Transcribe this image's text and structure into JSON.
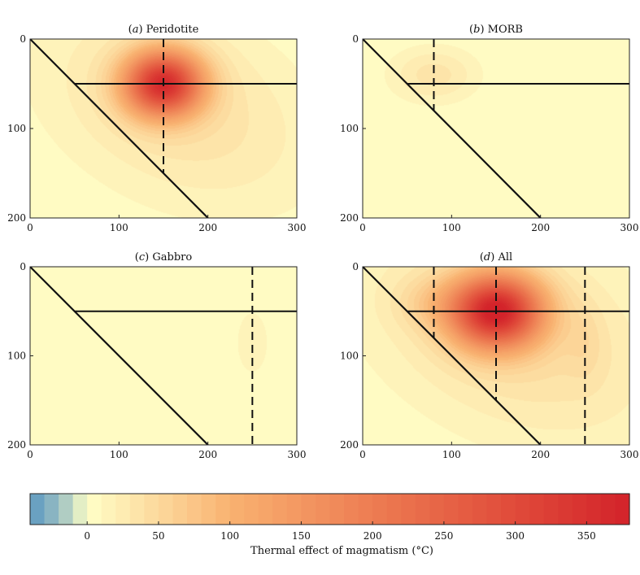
{
  "chart_data": {
    "type": "heatmap",
    "panels": [
      {
        "label": "(a)",
        "title": "Peridotite",
        "xlim": [
          0,
          300
        ],
        "ylim": [
          0,
          200
        ],
        "xticks": [
          "0",
          "100",
          "200",
          "300"
        ],
        "yticks": [
          "0",
          "100",
          "200"
        ],
        "slab": [
          [
            0,
            0
          ],
          [
            200,
            200
          ]
        ],
        "horizontal": {
          "y": 50,
          "x_from": 50,
          "x_to": 300
        },
        "dashed_x": [
          150
        ],
        "blobs": [
          {
            "cx": 150,
            "cy": 50,
            "sx": 30,
            "sy": 25,
            "amp": 330,
            "rot": 0
          },
          {
            "cx": 165,
            "cy": 75,
            "sx": 110,
            "sy": 70,
            "amp": 40,
            "rot": 25
          }
        ],
        "neg": {
          "cx": 190,
          "cy": 160,
          "len": 90,
          "wid": 11,
          "rot": 47,
          "amp": -20
        }
      },
      {
        "label": "(b)",
        "title": "MORB",
        "xlim": [
          0,
          300
        ],
        "ylim": [
          0,
          200
        ],
        "xticks": [
          "0",
          "100",
          "200",
          "300"
        ],
        "yticks": [
          "0",
          "100",
          "200"
        ],
        "slab": [
          [
            0,
            0
          ],
          [
            200,
            200
          ]
        ],
        "horizontal": {
          "y": 50,
          "x_from": 50,
          "x_to": 300
        },
        "dashed_x": [
          80
        ],
        "blobs": [
          {
            "cx": 80,
            "cy": 40,
            "sx": 35,
            "sy": 22,
            "amp": 35,
            "rot": 0
          }
        ],
        "neg": null
      },
      {
        "label": "(c)",
        "title": "Gabbro",
        "xlim": [
          0,
          300
        ],
        "ylim": [
          0,
          200
        ],
        "xticks": [
          "0",
          "100",
          "200",
          "300"
        ],
        "yticks": [
          "0",
          "100",
          "200"
        ],
        "slab": [
          [
            0,
            0
          ],
          [
            200,
            200
          ]
        ],
        "horizontal": {
          "y": 50,
          "x_from": 50,
          "x_to": 300
        },
        "dashed_x": [
          250
        ],
        "blobs": [
          {
            "cx": 250,
            "cy": 85,
            "sx": 15,
            "sy": 30,
            "amp": 18,
            "rot": 0
          }
        ],
        "neg": null
      },
      {
        "label": "(d)",
        "title": "All",
        "xlim": [
          0,
          300
        ],
        "ylim": [
          0,
          200
        ],
        "xticks": [
          "0",
          "100",
          "200",
          "300"
        ],
        "yticks": [
          "0",
          "100",
          "200"
        ],
        "slab": [
          [
            0,
            0
          ],
          [
            200,
            200
          ]
        ],
        "horizontal": {
          "y": 50,
          "x_from": 50,
          "x_to": 300
        },
        "dashed_x": [
          80,
          150,
          250
        ],
        "blobs": [
          {
            "cx": 150,
            "cy": 50,
            "sx": 35,
            "sy": 28,
            "amp": 350,
            "rot": 0
          },
          {
            "cx": 170,
            "cy": 75,
            "sx": 120,
            "sy": 75,
            "amp": 45,
            "rot": 25
          },
          {
            "cx": 80,
            "cy": 40,
            "sx": 30,
            "sy": 20,
            "amp": 30,
            "rot": 0
          },
          {
            "cx": 250,
            "cy": 85,
            "sx": 15,
            "sy": 30,
            "amp": 15,
            "rot": 0
          }
        ],
        "neg": {
          "cx": 190,
          "cy": 160,
          "len": 90,
          "wid": 11,
          "rot": 47,
          "amp": -20
        }
      }
    ],
    "colorbar": {
      "label": "Thermal effect of magmatism (°C)",
      "min": -40,
      "max": 380,
      "step": 10,
      "ticks": [
        0,
        50,
        100,
        150,
        200,
        250,
        300,
        350
      ],
      "tick_labels": [
        "0",
        "50",
        "100",
        "150",
        "200",
        "250",
        "300",
        "350"
      ],
      "colormap": [
        {
          "v": -40,
          "c": "#5b97c0"
        },
        {
          "v": -20,
          "c": "#98bec2"
        },
        {
          "v": -10,
          "c": "#c7dcc3"
        },
        {
          "v": 0,
          "c": "#ffffc7"
        },
        {
          "v": 100,
          "c": "#f9b271"
        },
        {
          "v": 200,
          "c": "#ed7c52"
        },
        {
          "v": 300,
          "c": "#e04a3a"
        },
        {
          "v": 380,
          "c": "#d3232a"
        }
      ]
    }
  }
}
